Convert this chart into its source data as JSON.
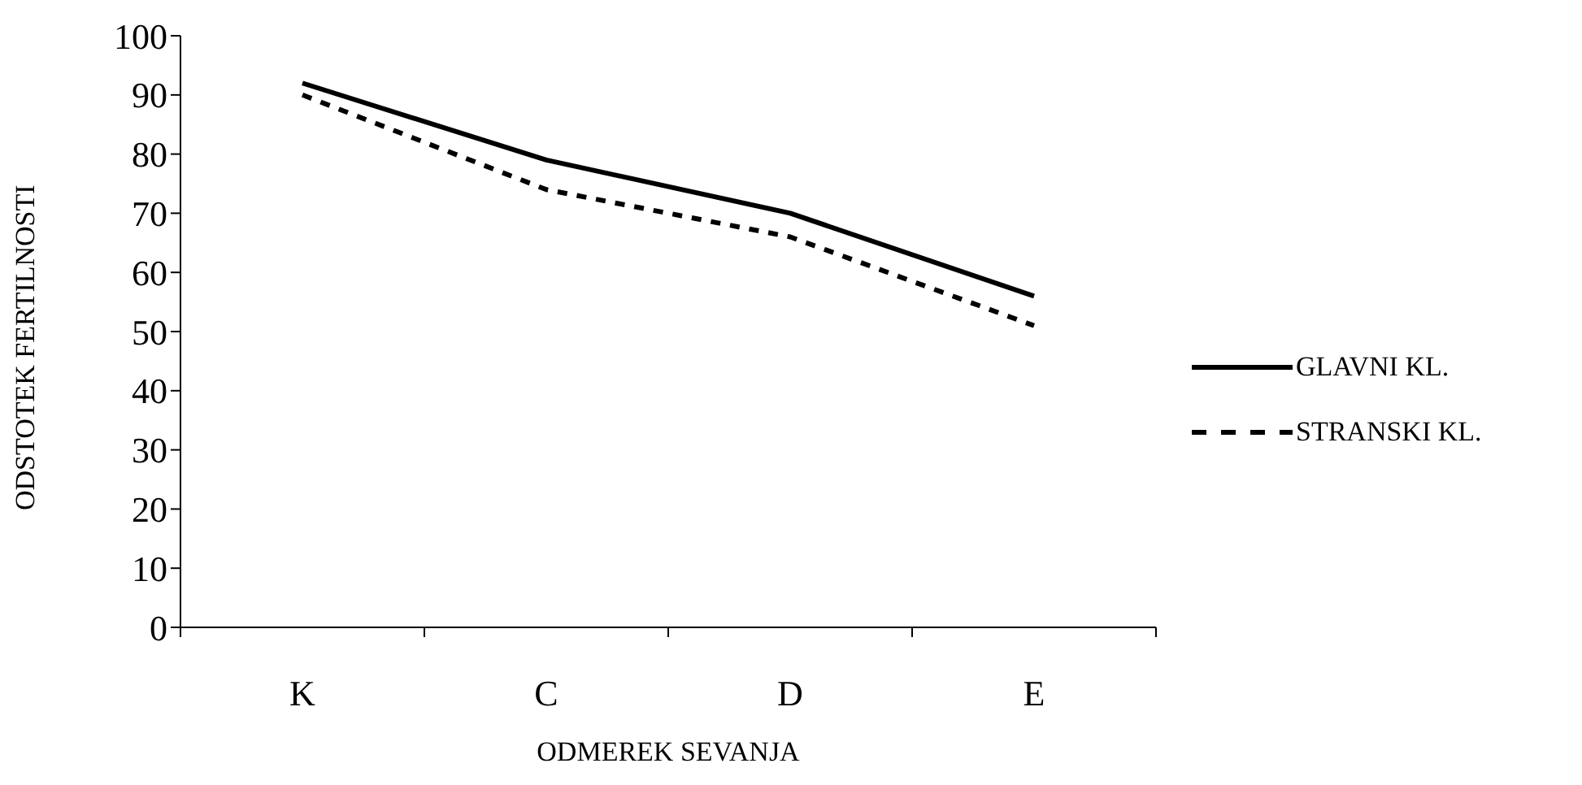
{
  "chart_data": {
    "type": "line",
    "xlabel": "ODMEREK SEVANJA",
    "ylabel": "ODSTOTEK FERTILNOSTI",
    "categories": [
      "K",
      "C",
      "D",
      "E"
    ],
    "series": [
      {
        "name": "GLAVNI KL.",
        "color": "#000000",
        "line_style": "solid",
        "values": [
          92,
          79,
          70,
          56
        ]
      },
      {
        "name": "STRANSKI KL.",
        "color": "#000000",
        "line_style": "dashed",
        "values": [
          90,
          74,
          66,
          51
        ]
      }
    ],
    "ylim": [
      0,
      100
    ],
    "yticks": [
      0,
      10,
      20,
      30,
      40,
      50,
      60,
      70,
      80,
      90,
      100
    ],
    "grid": false,
    "legend": "right",
    "marker": "none"
  }
}
